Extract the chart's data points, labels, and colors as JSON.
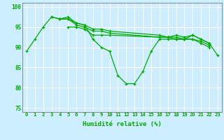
{
  "xlabel": "Humidité relative (%)",
  "xlim": [
    -0.5,
    23.5
  ],
  "ylim": [
    74,
    101
  ],
  "yticks": [
    75,
    80,
    85,
    90,
    95,
    100
  ],
  "xticks": [
    0,
    1,
    2,
    3,
    4,
    5,
    6,
    7,
    8,
    9,
    10,
    11,
    12,
    13,
    14,
    15,
    16,
    17,
    18,
    19,
    20,
    21,
    22,
    23
  ],
  "bg_color": "#cceeff",
  "grid_color": "#ffffff",
  "line_color": "#00aa00",
  "line1_x": [
    0,
    1,
    2,
    3,
    4,
    5,
    6,
    7,
    8,
    9,
    10,
    11,
    12,
    13,
    14,
    15,
    16,
    17,
    18,
    19,
    20,
    21,
    22,
    23
  ],
  "line1_y": [
    89,
    92,
    95,
    97.5,
    97,
    97.5,
    96,
    95.5,
    92,
    90,
    89,
    83,
    81,
    81,
    84,
    89,
    92,
    92,
    92,
    92,
    93,
    92,
    91,
    88
  ],
  "line2_x": [
    3,
    4,
    5,
    6,
    7,
    8,
    9,
    10,
    16,
    17,
    18,
    19,
    20,
    21,
    22
  ],
  "line2_y": [
    97.5,
    97,
    97,
    96,
    95.5,
    94.5,
    94.5,
    94,
    93,
    92.5,
    93,
    92.5,
    93,
    92,
    91
  ],
  "line3_x": [
    4,
    5,
    6,
    7,
    8,
    9,
    10,
    16,
    17,
    18,
    19,
    20,
    21,
    22
  ],
  "line3_y": [
    97,
    97,
    95.5,
    95,
    94,
    94,
    93.5,
    92.5,
    92.5,
    92.5,
    92,
    92,
    91.5,
    90.5
  ],
  "line4_x": [
    5,
    6,
    7,
    8,
    9,
    10,
    16,
    17,
    18,
    19,
    20,
    21,
    22
  ],
  "line4_y": [
    95,
    95,
    94.5,
    93,
    93,
    93,
    92.5,
    92.5,
    92,
    92,
    92,
    91,
    90
  ]
}
